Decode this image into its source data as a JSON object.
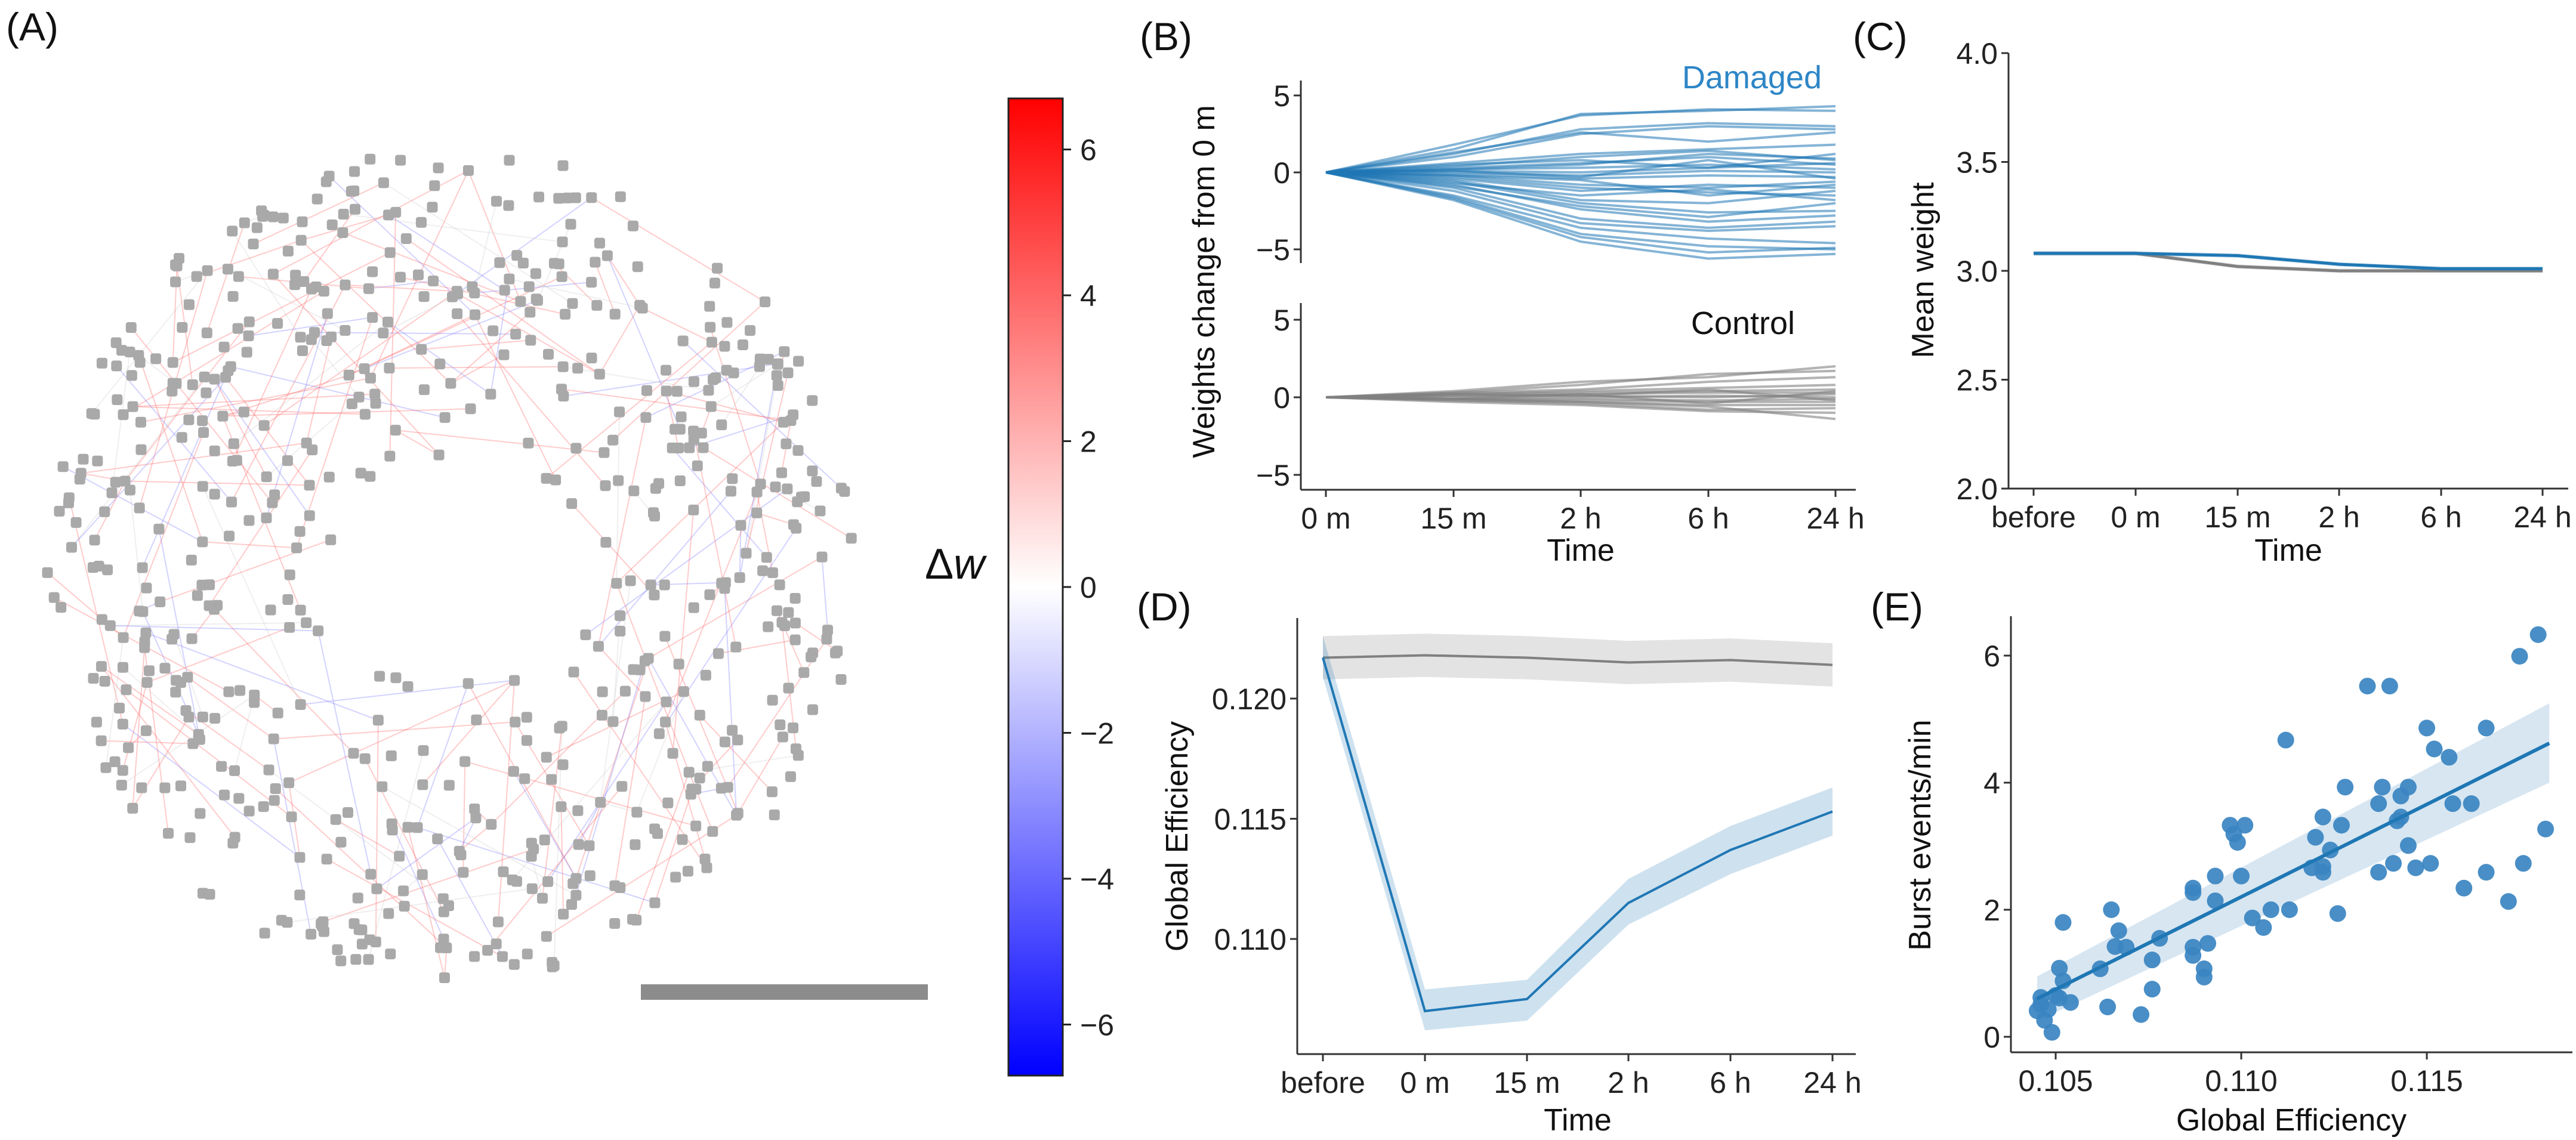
{
  "panel_labels": {
    "a": "(A)",
    "b": "(B)",
    "c": "(C)",
    "d": "(D)",
    "e": "(E)"
  },
  "colors": {
    "damaged": "#1f77b4",
    "control": "#808080",
    "scatter": "#3a84c1",
    "cmap_low": "#0000ff",
    "cmap_mid": "#ffffff",
    "cmap_high": "#ff0000",
    "node": "#a9a9a9",
    "scalebar": "#8c8c8c"
  },
  "chart_data": [
    {
      "id": "A",
      "type": "network",
      "colorbar": {
        "label_symbol": "Δ",
        "label_var": "w",
        "ticks": [
          6,
          4,
          2,
          0,
          -2,
          -4,
          -6
        ],
        "tick_labels": [
          "6",
          "4",
          "2",
          "0",
          "−2",
          "−4",
          "−6"
        ],
        "range": [
          -6.7,
          6.7
        ],
        "cmap": "bwr"
      }
    },
    {
      "id": "B",
      "type": "line",
      "x": [
        "0 m",
        "15 m",
        "2 h",
        "6 h",
        "24 h"
      ],
      "xlabel": "Time",
      "ylabel": "Weights change from 0 m",
      "yticks": [
        5,
        0,
        -5
      ],
      "ytick_labels": [
        "5",
        "0",
        "−5"
      ],
      "ylim": [
        -6,
        6
      ],
      "subplots": [
        {
          "name": "Damaged",
          "series": [
            [
              0,
              1.5,
              3.8,
              4.0,
              4.3
            ],
            [
              0,
              1.8,
              3.7,
              4.1,
              4.0
            ],
            [
              0,
              1.2,
              2.8,
              3.2,
              3.0
            ],
            [
              0,
              1.0,
              2.5,
              3.0,
              2.8
            ],
            [
              0,
              1.3,
              2.6,
              2.0,
              2.6
            ],
            [
              0,
              0.6,
              1.2,
              1.5,
              1.8
            ],
            [
              0,
              0.4,
              1.0,
              1.4,
              0.8
            ],
            [
              0,
              0.3,
              0.6,
              1.0,
              0.5
            ],
            [
              0,
              0.2,
              0.3,
              0.5,
              0.2
            ],
            [
              0,
              0.1,
              0.0,
              0.3,
              0.6
            ],
            [
              0,
              0,
              -0.2,
              0.1,
              0.0
            ],
            [
              0,
              -0.1,
              -0.4,
              -0.2,
              -0.3
            ],
            [
              0,
              -0.2,
              -0.8,
              -1.0,
              -0.6
            ],
            [
              0,
              -0.3,
              -1.0,
              -1.3,
              -1.5
            ],
            [
              0,
              -0.4,
              -1.2,
              -0.8,
              -1.0
            ],
            [
              0,
              -0.5,
              -1.8,
              -2.0,
              -1.2
            ],
            [
              0,
              -0.6,
              -2.0,
              -2.6,
              -2.5
            ],
            [
              0,
              -0.8,
              -2.4,
              -3.2,
              -2.8
            ],
            [
              0,
              -1.0,
              -3.0,
              -3.6,
              -3.2
            ],
            [
              0,
              -1.2,
              -3.3,
              -3.8,
              -3.5
            ],
            [
              0,
              -1.5,
              -3.6,
              -4.3,
              -4.6
            ],
            [
              0,
              -1.6,
              -4.0,
              -4.8,
              -5.0
            ],
            [
              0,
              -1.8,
              -4.5,
              -5.6,
              -5.3
            ],
            [
              0,
              -1.7,
              -4.2,
              -5.2,
              -4.9
            ],
            [
              0,
              -0.9,
              -2.2,
              -2.9,
              -2.0
            ],
            [
              0,
              0.5,
              0.8,
              0.3,
              1.2
            ],
            [
              0,
              -0.2,
              -0.5,
              -1.5,
              -0.8
            ],
            [
              0,
              0.2,
              0.5,
              1.2,
              0.9
            ],
            [
              0,
              -0.7,
              -1.5,
              -1.1,
              -1.8
            ],
            [
              0,
              0.1,
              -0.3,
              0.8,
              -0.4
            ]
          ]
        },
        {
          "name": "Control",
          "series": [
            [
              0,
              0.4,
              1.0,
              1.3,
              2.0
            ],
            [
              0,
              0.3,
              0.8,
              1.5,
              1.7
            ],
            [
              0,
              0.3,
              0.5,
              1.0,
              1.3
            ],
            [
              0,
              0.2,
              0.4,
              0.6,
              0.8
            ],
            [
              0,
              0.2,
              0.3,
              0.4,
              0.5
            ],
            [
              0,
              0.1,
              0.2,
              0.3,
              0.3
            ],
            [
              0,
              0.1,
              0.1,
              0.0,
              0.2
            ],
            [
              0,
              0,
              0,
              0.1,
              0.0
            ],
            [
              0,
              -0.1,
              -0.1,
              -0.2,
              -0.1
            ],
            [
              0,
              -0.1,
              -0.2,
              -0.3,
              -0.3
            ],
            [
              0,
              -0.2,
              -0.3,
              -0.5,
              -0.5
            ],
            [
              0,
              -0.2,
              -0.4,
              -0.8,
              -0.7
            ],
            [
              0,
              -0.3,
              -0.5,
              -0.9,
              -1.0
            ],
            [
              0,
              -0.1,
              -0.3,
              -0.6,
              -1.4
            ],
            [
              0,
              0.2,
              0.1,
              0.5,
              -0.2
            ],
            [
              0,
              -0.1,
              0.2,
              -0.4,
              0.4
            ]
          ]
        }
      ]
    },
    {
      "id": "C",
      "type": "line",
      "x": [
        "before",
        "0 m",
        "15 m",
        "2 h",
        "6 h",
        "24 h"
      ],
      "xlabel": "Time",
      "ylabel": "Mean weight",
      "yticks": [
        4.0,
        3.5,
        3.0,
        2.5,
        2.0
      ],
      "ytick_labels": [
        "4.0",
        "3.5",
        "3.0",
        "2.5",
        "2.0"
      ],
      "ylim": [
        2.0,
        4.0
      ],
      "series": [
        {
          "name": "Damaged",
          "values": [
            3.08,
            3.08,
            3.07,
            3.03,
            3.01,
            3.01
          ],
          "ci": 0.01
        },
        {
          "name": "Control",
          "values": [
            3.08,
            3.08,
            3.02,
            3.0,
            3.0,
            3.0
          ],
          "ci": 0.01
        }
      ]
    },
    {
      "id": "D",
      "type": "line",
      "x": [
        "before",
        "0 m",
        "15 m",
        "2 h",
        "6 h",
        "24 h"
      ],
      "xlabel": "Time",
      "ylabel": "Global Efficiency",
      "yticks": [
        0.12,
        0.115,
        0.11
      ],
      "ytick_labels": [
        "0.120",
        "0.115",
        "0.110"
      ],
      "ylim": [
        0.1052,
        0.1234
      ],
      "series": [
        {
          "name": "Control",
          "values": [
            0.1217,
            0.1218,
            0.1217,
            0.1215,
            0.1216,
            0.1214
          ],
          "lower": [
            0.1208,
            0.1209,
            0.1208,
            0.1206,
            0.1207,
            0.1205
          ],
          "upper": [
            0.1226,
            0.1227,
            0.1226,
            0.1224,
            0.1225,
            0.1223
          ]
        },
        {
          "name": "Damaged",
          "values": [
            0.1217,
            0.107,
            0.1075,
            0.1115,
            0.1137,
            0.1153
          ],
          "lower": [
            0.1209,
            0.1062,
            0.1066,
            0.1106,
            0.1127,
            0.1143
          ],
          "upper": [
            0.1226,
            0.1079,
            0.1083,
            0.1125,
            0.1147,
            0.1163
          ]
        }
      ]
    },
    {
      "id": "E",
      "type": "scatter",
      "xlabel": "Global Efficiency",
      "ylabel": "Burst events/min",
      "xticks": [
        0.105,
        0.11,
        0.115
      ],
      "xtick_labels": [
        "0.105",
        "0.110",
        "0.115"
      ],
      "yticks": [
        0,
        2,
        4,
        6
      ],
      "ytick_labels": [
        "0",
        "2",
        "4",
        "6"
      ],
      "xlim": [
        0.1038,
        0.1189
      ],
      "ylim": [
        -0.25,
        6.6
      ],
      "regression": {
        "x": [
          0.1045,
          0.1183
        ],
        "y": [
          0.6,
          4.62
        ],
        "ci_lower": [
          0.25,
          4.0
        ],
        "ci_upper": [
          0.95,
          5.25
        ]
      },
      "points": [
        [
          0.118,
          6.33
        ],
        [
          0.1175,
          5.99
        ],
        [
          0.1134,
          5.52
        ],
        [
          0.114,
          5.52
        ],
        [
          0.1112,
          4.67
        ],
        [
          0.115,
          4.86
        ],
        [
          0.1166,
          4.86
        ],
        [
          0.1152,
          4.53
        ],
        [
          0.1156,
          4.4
        ],
        [
          0.1128,
          3.93
        ],
        [
          0.1138,
          3.93
        ],
        [
          0.1145,
          3.93
        ],
        [
          0.1143,
          3.79
        ],
        [
          0.1137,
          3.67
        ],
        [
          0.1157,
          3.67
        ],
        [
          0.1162,
          3.67
        ],
        [
          0.1122,
          3.46
        ],
        [
          0.1143,
          3.46
        ],
        [
          0.1142,
          3.4
        ],
        [
          0.1127,
          3.33
        ],
        [
          0.1097,
          3.33
        ],
        [
          0.1101,
          3.33
        ],
        [
          0.1098,
          3.19
        ],
        [
          0.1099,
          3.06
        ],
        [
          0.1182,
          3.27
        ],
        [
          0.112,
          3.14
        ],
        [
          0.1124,
          2.94
        ],
        [
          0.1145,
          3.01
        ],
        [
          0.1119,
          2.66
        ],
        [
          0.1122,
          2.68
        ],
        [
          0.1122,
          2.59
        ],
        [
          0.1141,
          2.73
        ],
        [
          0.1137,
          2.59
        ],
        [
          0.1147,
          2.66
        ],
        [
          0.1151,
          2.73
        ],
        [
          0.1166,
          2.59
        ],
        [
          0.1176,
          2.73
        ],
        [
          0.116,
          2.34
        ],
        [
          0.1172,
          2.13
        ],
        [
          0.1093,
          2.53
        ],
        [
          0.11,
          2.53
        ],
        [
          0.1087,
          2.27
        ],
        [
          0.1087,
          2.34
        ],
        [
          0.1093,
          2.14
        ],
        [
          0.1108,
          2.0
        ],
        [
          0.1113,
          2.0
        ],
        [
          0.1103,
          1.87
        ],
        [
          0.1106,
          1.72
        ],
        [
          0.1126,
          1.94
        ],
        [
          0.1065,
          2.0
        ],
        [
          0.1067,
          1.67
        ],
        [
          0.1052,
          1.8
        ],
        [
          0.1066,
          1.42
        ],
        [
          0.1069,
          1.41
        ],
        [
          0.1078,
          1.55
        ],
        [
          0.1076,
          1.21
        ],
        [
          0.1087,
          1.41
        ],
        [
          0.1087,
          1.28
        ],
        [
          0.1091,
          1.47
        ],
        [
          0.109,
          1.07
        ],
        [
          0.109,
          0.94
        ],
        [
          0.1051,
          1.08
        ],
        [
          0.1062,
          1.07
        ],
        [
          0.1052,
          0.88
        ],
        [
          0.1076,
          0.75
        ],
        [
          0.105,
          0.65
        ],
        [
          0.1051,
          0.61
        ],
        [
          0.1054,
          0.54
        ],
        [
          0.1064,
          0.47
        ],
        [
          0.1073,
          0.35
        ],
        [
          0.1046,
          0.62
        ],
        [
          0.1046,
          0.51
        ],
        [
          0.1045,
          0.41
        ],
        [
          0.1048,
          0.43
        ],
        [
          0.1047,
          0.26
        ],
        [
          0.1049,
          0.07
        ]
      ]
    }
  ]
}
